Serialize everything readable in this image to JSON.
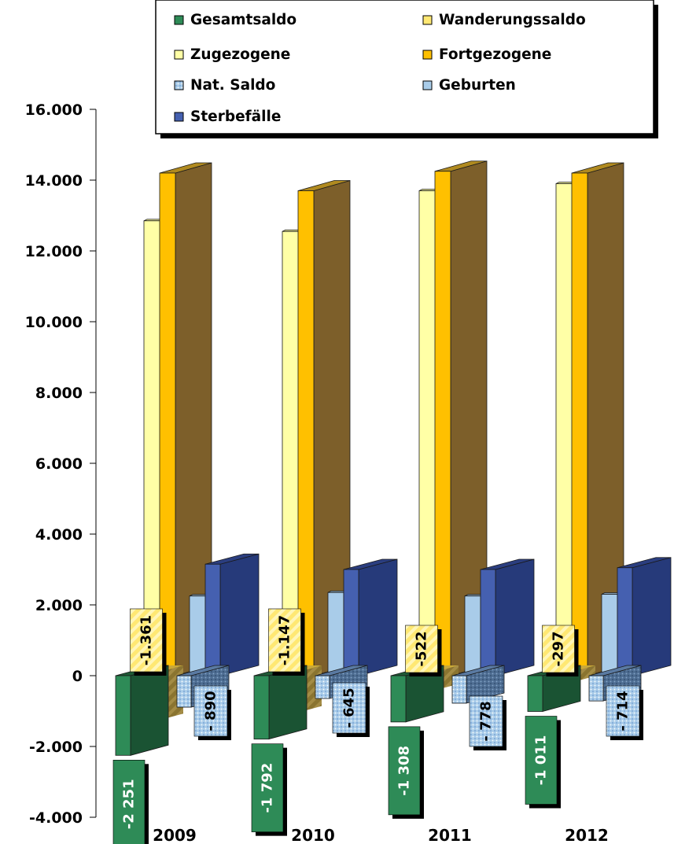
{
  "chart_data": {
    "type": "bar",
    "categories": [
      "2009",
      "2010",
      "2011",
      "2012"
    ],
    "ylim": [
      -4000,
      16000
    ],
    "yticks": [
      "-4.000",
      "-2.000",
      "0",
      "2.000",
      "4.000",
      "6.000",
      "8.000",
      "10.000",
      "12.000",
      "14.000",
      "16.000"
    ],
    "ytick_values": [
      -4000,
      -2000,
      0,
      2000,
      4000,
      6000,
      8000,
      10000,
      12000,
      14000,
      16000
    ],
    "legend_position": "top-right",
    "series": [
      {
        "name": "Gesamtsaldo",
        "color": "#2e8b57",
        "values": [
          -2251,
          -1792,
          -1308,
          -1011
        ],
        "labels": [
          "-2 251",
          "-1 792",
          "-1 308",
          "-1 011"
        ]
      },
      {
        "name": "Wanderungssaldo",
        "color": "#ffe873",
        "values": [
          -1361,
          -1147,
          -522,
          -297
        ],
        "labels": [
          "-1.361",
          "-1.147",
          "-522",
          "-297"
        ]
      },
      {
        "name": "Zugezogene",
        "color": "#ffffa6",
        "values": [
          12850,
          12550,
          13700,
          13900
        ]
      },
      {
        "name": "Fortgezogene",
        "color": "#ffc000",
        "values": [
          14200,
          13700,
          14250,
          14200
        ]
      },
      {
        "name": "Nat. Saldo",
        "color": "#9dc3e6",
        "values": [
          -890,
          -645,
          -778,
          -714
        ],
        "labels": [
          "- 890",
          "- 645",
          "- 778",
          "- 714"
        ]
      },
      {
        "name": "Geburten",
        "color": "#a9cce9",
        "values": [
          2250,
          2350,
          2250,
          2300
        ]
      },
      {
        "name": "Sterbefälle",
        "color": "#4560b0",
        "values": [
          3150,
          3000,
          3000,
          3050
        ]
      }
    ]
  }
}
